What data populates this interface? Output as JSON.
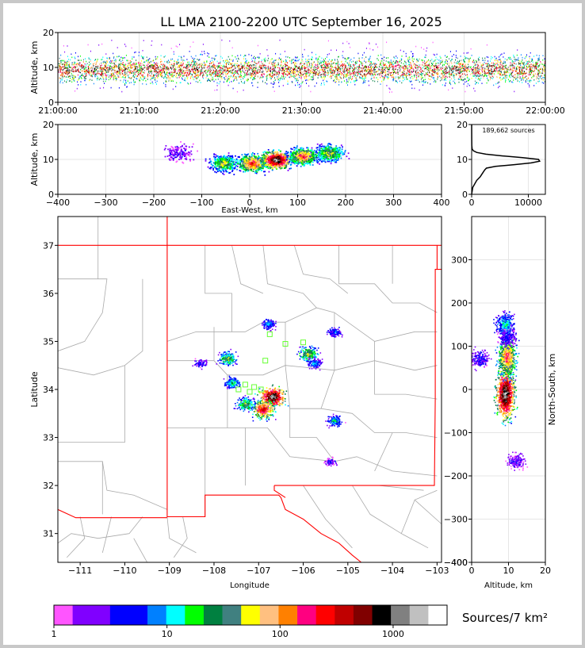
{
  "chart_data": [
    {
      "id": "time_height",
      "type": "heatmap",
      "title": "LL LMA 2100-2200 UTC September 16, 2025",
      "xlabel": "",
      "ylabel": "Altitude, km",
      "x_ticks": [
        "21:00:00",
        "21:10:00",
        "21:20:00",
        "21:30:00",
        "21:40:00",
        "21:50:00",
        "22:00:00"
      ],
      "ylim": [
        0,
        20
      ],
      "y_ticks": [
        0,
        10,
        20
      ]
    },
    {
      "id": "ew_height",
      "type": "heatmap",
      "xlabel": "East-West, km",
      "ylabel": "Altitude, km",
      "xlim": [
        -400,
        400
      ],
      "x_ticks": [
        -400,
        -300,
        -200,
        -100,
        0,
        100,
        200,
        300,
        400
      ],
      "ylim": [
        0,
        20
      ],
      "y_ticks": [
        0,
        10,
        20
      ],
      "clusters": [
        {
          "x": -55,
          "y": 9,
          "intensity": 0.55
        },
        {
          "x": 5,
          "y": 9,
          "intensity": 0.75
        },
        {
          "x": 55,
          "y": 10,
          "intensity": 1.0
        },
        {
          "x": 110,
          "y": 11,
          "intensity": 0.7
        },
        {
          "x": 165,
          "y": 12,
          "intensity": 0.55
        },
        {
          "x": -150,
          "y": 12,
          "intensity": 0.15
        }
      ]
    },
    {
      "id": "altitude_histogram",
      "type": "line",
      "annotation": "189,662 sources",
      "xlim": [
        0,
        13000
      ],
      "x_ticks": [
        0,
        10000
      ],
      "ylim": [
        0,
        20
      ],
      "y_ticks": [
        0,
        10,
        20
      ],
      "profile": [
        [
          0,
          0
        ],
        [
          2,
          200
        ],
        [
          4,
          900
        ],
        [
          5,
          1500
        ],
        [
          6,
          1900
        ],
        [
          7,
          2300
        ],
        [
          7.5,
          2600
        ],
        [
          8,
          4200
        ],
        [
          8.5,
          7500
        ],
        [
          9,
          10500
        ],
        [
          9.5,
          12000
        ],
        [
          10,
          11800
        ],
        [
          10.5,
          9000
        ],
        [
          11,
          5500
        ],
        [
          11.5,
          2500
        ],
        [
          12,
          900
        ],
        [
          12.5,
          300
        ],
        [
          13,
          80
        ],
        [
          14,
          30
        ],
        [
          16,
          10
        ],
        [
          20,
          0
        ]
      ]
    },
    {
      "id": "plan_view",
      "type": "heatmap",
      "xlabel": "Longitude",
      "ylabel": "Latitude",
      "xlim": [
        -111.5,
        -102.9
      ],
      "x_ticks": [
        -111,
        -110,
        -109,
        -108,
        -107,
        -106,
        -105,
        -104,
        -103
      ],
      "ylim": [
        30.4,
        37.6
      ],
      "y_ticks": [
        31,
        32,
        33,
        34,
        35,
        36,
        37
      ],
      "clusters": [
        {
          "lon": -106.7,
          "lat": 33.85,
          "intensity": 1.0
        },
        {
          "lon": -106.9,
          "lat": 33.6,
          "intensity": 0.8
        },
        {
          "lon": -107.3,
          "lat": 33.7,
          "intensity": 0.5
        },
        {
          "lon": -107.6,
          "lat": 34.15,
          "intensity": 0.4
        },
        {
          "lon": -107.7,
          "lat": 34.65,
          "intensity": 0.5
        },
        {
          "lon": -105.9,
          "lat": 34.75,
          "intensity": 0.55
        },
        {
          "lon": -105.75,
          "lat": 34.55,
          "intensity": 0.3
        },
        {
          "lon": -106.8,
          "lat": 35.37,
          "intensity": 0.3
        },
        {
          "lon": -105.3,
          "lat": 35.2,
          "intensity": 0.25
        },
        {
          "lon": -105.3,
          "lat": 33.35,
          "intensity": 0.35
        },
        {
          "lon": -105.4,
          "lat": 32.5,
          "intensity": 0.15
        },
        {
          "lon": -108.3,
          "lat": 34.55,
          "intensity": 0.2
        }
      ],
      "stations": [
        [
          -107.1,
          34.05
        ],
        [
          -106.95,
          34.0
        ],
        [
          -107.3,
          34.1
        ],
        [
          -106.75,
          35.15
        ],
        [
          -106.4,
          34.95
        ],
        [
          -106.0,
          34.98
        ],
        [
          -106.85,
          34.6
        ],
        [
          -107.2,
          33.95
        ],
        [
          -107.45,
          34.0
        ]
      ]
    },
    {
      "id": "height_ns",
      "type": "heatmap",
      "xlabel": "Altitude, km",
      "ylabel": "North-South, km",
      "xlim": [
        0,
        20
      ],
      "x_ticks": [
        0,
        10,
        20
      ],
      "ylim": [
        -400,
        400
      ],
      "y_ticks": [
        -400,
        -300,
        -200,
        -100,
        0,
        100,
        200,
        300
      ],
      "clusters": [
        {
          "x": 9,
          "y": -10,
          "intensity": 1.0
        },
        {
          "x": 9.5,
          "y": 75,
          "intensity": 0.7
        },
        {
          "x": 9,
          "y": 150,
          "intensity": 0.35
        },
        {
          "x": 9.5,
          "y": 120,
          "intensity": 0.2
        },
        {
          "x": 12,
          "y": -165,
          "intensity": 0.15
        },
        {
          "x": 2,
          "y": 72,
          "intensity": 0.2
        }
      ]
    },
    {
      "id": "colorbar",
      "type": "heatmap",
      "title": "Sources/7 km²",
      "scale": "log",
      "range": [
        1,
        3000
      ],
      "tick_labels": [
        "1",
        "10",
        "100",
        "1000"
      ],
      "colors": [
        "#ff55ff",
        "#8000ff",
        "#8000ff",
        "#0000ff",
        "#0000ff",
        "#0080ff",
        "#00ffff",
        "#00ff00",
        "#008040",
        "#408080",
        "#ffff00",
        "#ffc080",
        "#ff8000",
        "#ff0080",
        "#ff0000",
        "#c00000",
        "#800000",
        "#000000",
        "#808080",
        "#c0c0c0",
        "#ffffff"
      ]
    }
  ]
}
